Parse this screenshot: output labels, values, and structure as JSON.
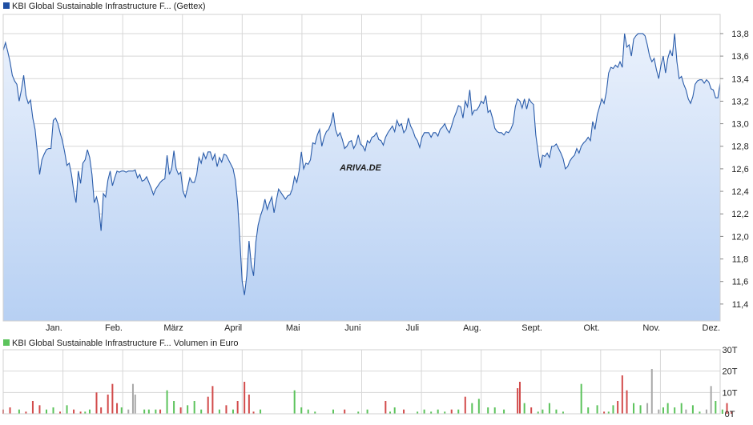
{
  "colors": {
    "price_line": "#2a5caa",
    "area_top": "#eaf1fc",
    "area_bottom": "#b7d0f3",
    "grid": "#d7d7d7",
    "volume_up": "#5cc35c",
    "volume_down": "#d24b4b",
    "volume_neutral": "#a8a8a8",
    "watermark": "#e3eaf4"
  },
  "watermark": "ARIVA.DE",
  "chart_data": [
    {
      "type": "line",
      "legend": {
        "label": "KBI Global Sustainable Infrastructure F... (Gettex)",
        "color": "#1f4fa3",
        "placement": "top-left"
      },
      "x_ticks": [
        "Jan.",
        "Feb.",
        "März",
        "April",
        "Mai",
        "Juni",
        "Juli",
        "Aug.",
        "Sept.",
        "Okt.",
        "Nov.",
        "Dez."
      ],
      "y_ticks": [
        "13,8",
        "13,6",
        "13,4",
        "13,2",
        "13,0",
        "12,8",
        "12,6",
        "12,4",
        "12,2",
        "12,0",
        "11,8",
        "11,6",
        "11,4"
      ],
      "ylim": [
        11.25,
        13.97
      ],
      "grid": true,
      "series": [
        {
          "name": "KBI Global Sustainable Infrastructure F... (Gettex)",
          "values": [
            13.65,
            13.72,
            13.64,
            13.55,
            13.43,
            13.38,
            13.35,
            13.2,
            13.3,
            13.43,
            13.25,
            13.18,
            13.21,
            13.05,
            12.95,
            12.75,
            12.55,
            12.68,
            12.73,
            12.77,
            12.78,
            12.78,
            13.03,
            13.05,
            13.0,
            12.92,
            12.85,
            12.75,
            12.63,
            12.65,
            12.55,
            12.4,
            12.3,
            12.58,
            12.47,
            12.65,
            12.68,
            12.77,
            12.7,
            12.55,
            12.3,
            12.35,
            12.26,
            12.05,
            12.38,
            12.35,
            12.5,
            12.58,
            12.45,
            12.52,
            12.58,
            12.57,
            12.58,
            12.58,
            12.57,
            12.58,
            12.58,
            12.58,
            12.59,
            12.52,
            12.55,
            12.49,
            12.5,
            12.53,
            12.48,
            12.43,
            12.37,
            12.42,
            12.45,
            12.48,
            12.5,
            12.51,
            12.72,
            12.55,
            12.6,
            12.76,
            12.6,
            12.55,
            12.57,
            12.4,
            12.35,
            12.43,
            12.52,
            12.48,
            12.48,
            12.55,
            12.7,
            12.65,
            12.74,
            12.69,
            12.75,
            12.75,
            12.68,
            12.73,
            12.62,
            12.7,
            12.66,
            12.73,
            12.72,
            12.68,
            12.64,
            12.6,
            12.5,
            12.3,
            11.96,
            11.6,
            11.48,
            11.65,
            11.96,
            11.75,
            11.65,
            11.95,
            12.1,
            12.18,
            12.24,
            12.33,
            12.24,
            12.3,
            12.35,
            12.21,
            12.32,
            12.42,
            12.39,
            12.36,
            12.33,
            12.36,
            12.37,
            12.42,
            12.53,
            12.48,
            12.58,
            12.75,
            12.6,
            12.65,
            12.64,
            12.68,
            12.83,
            12.82,
            12.9,
            12.95,
            12.8,
            12.88,
            12.93,
            12.95,
            13.0,
            13.1,
            12.95,
            12.89,
            12.92,
            12.86,
            12.78,
            12.8,
            12.84,
            12.85,
            12.78,
            12.82,
            12.9,
            12.82,
            12.8,
            12.76,
            12.85,
            12.83,
            12.88,
            12.89,
            12.92,
            12.86,
            12.85,
            12.81,
            12.88,
            12.92,
            12.95,
            12.98,
            12.93,
            13.03,
            12.98,
            13.0,
            12.92,
            12.95,
            13.05,
            12.98,
            12.94,
            12.88,
            12.85,
            12.79,
            12.88,
            12.92,
            12.92,
            12.92,
            12.88,
            12.92,
            12.92,
            12.89,
            12.95,
            12.97,
            13.0,
            12.95,
            12.92,
            12.98,
            13.05,
            13.1,
            13.16,
            13.15,
            13.05,
            13.2,
            13.15,
            13.3,
            13.08,
            13.12,
            13.12,
            13.15,
            13.2,
            13.18,
            13.25,
            13.1,
            13.12,
            13.05,
            12.96,
            12.93,
            12.92,
            12.92,
            12.9,
            12.93,
            12.92,
            12.95,
            13.0,
            13.15,
            13.22,
            13.2,
            13.14,
            13.22,
            13.13,
            13.22,
            13.19,
            13.17,
            12.9,
            12.75,
            12.61,
            12.72,
            12.71,
            12.74,
            12.7,
            12.8,
            12.8,
            12.82,
            12.78,
            12.74,
            12.69,
            12.6,
            12.62,
            12.67,
            12.7,
            12.72,
            12.78,
            12.74,
            12.8,
            12.83,
            12.85,
            12.88,
            12.85,
            13.02,
            12.95,
            13.08,
            13.15,
            13.22,
            13.18,
            13.28,
            13.45,
            13.5,
            13.49,
            13.52,
            13.5,
            13.55,
            13.5,
            13.8,
            13.68,
            13.7,
            13.6,
            13.75,
            13.78,
            13.8,
            13.8,
            13.8,
            13.78,
            13.7,
            13.6,
            13.55,
            13.58,
            13.48,
            13.4,
            13.52,
            13.6,
            13.45,
            13.58,
            13.65,
            13.6,
            13.8,
            13.55,
            13.4,
            13.42,
            13.35,
            13.3,
            13.22,
            13.18,
            13.24,
            13.35,
            13.38,
            13.39,
            13.39,
            13.36,
            13.39,
            13.37,
            13.31,
            13.3,
            13.23,
            13.23,
            13.36
          ]
        }
      ]
    },
    {
      "type": "bar",
      "legend": {
        "label": "KBI Global Sustainable Infrastructure F... Volumen in Euro",
        "color": "#5cc35c",
        "placement": "top-left"
      },
      "y_ticks": [
        "30T",
        "20T",
        "10T",
        "0T"
      ],
      "ylim": [
        0,
        30
      ],
      "grid": true,
      "series": [
        {
          "name": "KBI Global Sustainable Infrastructure F... Volumen in Euro",
          "bars": [
            {
              "i": 0,
              "v": 2,
              "c": "down"
            },
            {
              "i": 3,
              "v": 3,
              "c": "down"
            },
            {
              "i": 7,
              "v": 2,
              "c": "up"
            },
            {
              "i": 10,
              "v": 1,
              "c": "down"
            },
            {
              "i": 13,
              "v": 6,
              "c": "down"
            },
            {
              "i": 16,
              "v": 4,
              "c": "down"
            },
            {
              "i": 19,
              "v": 2,
              "c": "up"
            },
            {
              "i": 22,
              "v": 3,
              "c": "up"
            },
            {
              "i": 25,
              "v": 1,
              "c": "down"
            },
            {
              "i": 28,
              "v": 4,
              "c": "up"
            },
            {
              "i": 31,
              "v": 2,
              "c": "down"
            },
            {
              "i": 34,
              "v": 1,
              "c": "down"
            },
            {
              "i": 36,
              "v": 1,
              "c": "up"
            },
            {
              "i": 38,
              "v": 2,
              "c": "up"
            },
            {
              "i": 41,
              "v": 10,
              "c": "down"
            },
            {
              "i": 43,
              "v": 3,
              "c": "down"
            },
            {
              "i": 46,
              "v": 9,
              "c": "down"
            },
            {
              "i": 48,
              "v": 14,
              "c": "down"
            },
            {
              "i": 50,
              "v": 5,
              "c": "down"
            },
            {
              "i": 52,
              "v": 3,
              "c": "up"
            },
            {
              "i": 55,
              "v": 2,
              "c": "neutral"
            },
            {
              "i": 57,
              "v": 14,
              "c": "neutral"
            },
            {
              "i": 58,
              "v": 9,
              "c": "neutral"
            },
            {
              "i": 62,
              "v": 2,
              "c": "up"
            },
            {
              "i": 64,
              "v": 2,
              "c": "up"
            },
            {
              "i": 67,
              "v": 2,
              "c": "up"
            },
            {
              "i": 69,
              "v": 2,
              "c": "down"
            },
            {
              "i": 72,
              "v": 11,
              "c": "up"
            },
            {
              "i": 75,
              "v": 6,
              "c": "up"
            },
            {
              "i": 78,
              "v": 3,
              "c": "down"
            },
            {
              "i": 81,
              "v": 4,
              "c": "up"
            },
            {
              "i": 84,
              "v": 6,
              "c": "up"
            },
            {
              "i": 87,
              "v": 2,
              "c": "up"
            },
            {
              "i": 90,
              "v": 8,
              "c": "down"
            },
            {
              "i": 92,
              "v": 13,
              "c": "down"
            },
            {
              "i": 95,
              "v": 2,
              "c": "up"
            },
            {
              "i": 98,
              "v": 4,
              "c": "down"
            },
            {
              "i": 101,
              "v": 2,
              "c": "up"
            },
            {
              "i": 103,
              "v": 6,
              "c": "down"
            },
            {
              "i": 106,
              "v": 15,
              "c": "down"
            },
            {
              "i": 108,
              "v": 9,
              "c": "down"
            },
            {
              "i": 110,
              "v": 1,
              "c": "down"
            },
            {
              "i": 113,
              "v": 2,
              "c": "up"
            },
            {
              "i": 128,
              "v": 11,
              "c": "up"
            },
            {
              "i": 131,
              "v": 3,
              "c": "up"
            },
            {
              "i": 134,
              "v": 2,
              "c": "up"
            },
            {
              "i": 137,
              "v": 1,
              "c": "up"
            },
            {
              "i": 145,
              "v": 2,
              "c": "up"
            },
            {
              "i": 150,
              "v": 2,
              "c": "down"
            },
            {
              "i": 156,
              "v": 1,
              "c": "up"
            },
            {
              "i": 160,
              "v": 2,
              "c": "up"
            },
            {
              "i": 168,
              "v": 6,
              "c": "down"
            },
            {
              "i": 170,
              "v": 1,
              "c": "up"
            },
            {
              "i": 172,
              "v": 3,
              "c": "up"
            },
            {
              "i": 176,
              "v": 2,
              "c": "down"
            },
            {
              "i": 182,
              "v": 1,
              "c": "up"
            },
            {
              "i": 185,
              "v": 2,
              "c": "up"
            },
            {
              "i": 188,
              "v": 1,
              "c": "up"
            },
            {
              "i": 191,
              "v": 2,
              "c": "up"
            },
            {
              "i": 194,
              "v": 1,
              "c": "up"
            },
            {
              "i": 197,
              "v": 2,
              "c": "down"
            },
            {
              "i": 200,
              "v": 2,
              "c": "up"
            },
            {
              "i": 203,
              "v": 8,
              "c": "down"
            },
            {
              "i": 206,
              "v": 5,
              "c": "up"
            },
            {
              "i": 209,
              "v": 7,
              "c": "up"
            },
            {
              "i": 213,
              "v": 3,
              "c": "up"
            },
            {
              "i": 216,
              "v": 3,
              "c": "up"
            },
            {
              "i": 220,
              "v": 2,
              "c": "up"
            },
            {
              "i": 226,
              "v": 12,
              "c": "down"
            },
            {
              "i": 227,
              "v": 15,
              "c": "down"
            },
            {
              "i": 229,
              "v": 5,
              "c": "up"
            },
            {
              "i": 232,
              "v": 3,
              "c": "down"
            },
            {
              "i": 235,
              "v": 1,
              "c": "up"
            },
            {
              "i": 237,
              "v": 2,
              "c": "up"
            },
            {
              "i": 240,
              "v": 5,
              "c": "up"
            },
            {
              "i": 243,
              "v": 2,
              "c": "up"
            },
            {
              "i": 246,
              "v": 1,
              "c": "up"
            },
            {
              "i": 254,
              "v": 14,
              "c": "up"
            },
            {
              "i": 257,
              "v": 3,
              "c": "up"
            },
            {
              "i": 261,
              "v": 4,
              "c": "up"
            },
            {
              "i": 264,
              "v": 1,
              "c": "down"
            },
            {
              "i": 266,
              "v": 1,
              "c": "up"
            },
            {
              "i": 268,
              "v": 4,
              "c": "up"
            },
            {
              "i": 270,
              "v": 6,
              "c": "down"
            },
            {
              "i": 272,
              "v": 18,
              "c": "down"
            },
            {
              "i": 274,
              "v": 11,
              "c": "down"
            },
            {
              "i": 277,
              "v": 5,
              "c": "up"
            },
            {
              "i": 280,
              "v": 4,
              "c": "up"
            },
            {
              "i": 283,
              "v": 5,
              "c": "neutral"
            },
            {
              "i": 285,
              "v": 21,
              "c": "neutral"
            },
            {
              "i": 288,
              "v": 2,
              "c": "neutral"
            },
            {
              "i": 290,
              "v": 3,
              "c": "up"
            },
            {
              "i": 292,
              "v": 5,
              "c": "up"
            },
            {
              "i": 295,
              "v": 3,
              "c": "up"
            },
            {
              "i": 298,
              "v": 5,
              "c": "up"
            },
            {
              "i": 300,
              "v": 2,
              "c": "neutral"
            },
            {
              "i": 303,
              "v": 4,
              "c": "up"
            },
            {
              "i": 306,
              "v": 1,
              "c": "up"
            },
            {
              "i": 309,
              "v": 2,
              "c": "neutral"
            },
            {
              "i": 311,
              "v": 13,
              "c": "neutral"
            },
            {
              "i": 313,
              "v": 6,
              "c": "up"
            },
            {
              "i": 316,
              "v": 2,
              "c": "up"
            },
            {
              "i": 318,
              "v": 5,
              "c": "down"
            },
            {
              "i": 320,
              "v": 1,
              "c": "down"
            }
          ]
        }
      ]
    }
  ]
}
